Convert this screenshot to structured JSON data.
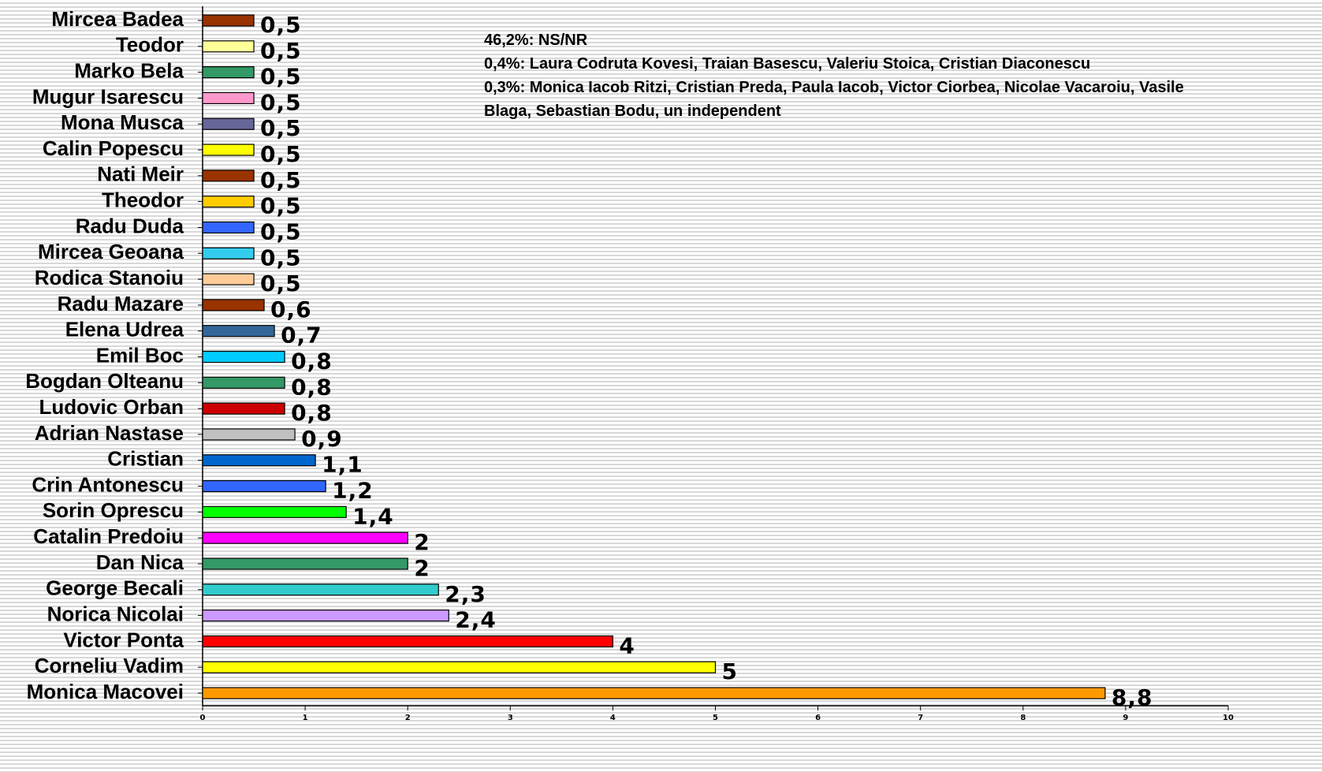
{
  "chart_data": {
    "type": "bar",
    "orientation": "horizontal",
    "categories": [
      "Mircea Badea",
      "Teodor",
      "Marko Bela",
      "Mugur Isarescu",
      "Mona Musca",
      "Calin Popescu",
      "Nati Meir",
      "Theodor",
      "Radu Duda",
      "Mircea Geoana",
      "Rodica Stanoiu",
      "Radu Mazare",
      "Elena Udrea",
      "Emil Boc",
      "Bogdan Olteanu",
      "Ludovic Orban",
      "Adrian Nastase",
      "Cristian",
      "Crin Antonescu",
      "Sorin Oprescu",
      "Catalin Predoiu",
      "Dan Nica",
      "George Becali",
      "Norica Nicolai",
      "Victor Ponta",
      "Corneliu Vadim",
      "Monica Macovei"
    ],
    "values": [
      0.5,
      0.5,
      0.5,
      0.5,
      0.5,
      0.5,
      0.5,
      0.5,
      0.5,
      0.5,
      0.5,
      0.6,
      0.7,
      0.8,
      0.8,
      0.8,
      0.9,
      1.1,
      1.2,
      1.4,
      2,
      2,
      2.3,
      2.4,
      4,
      5,
      8.8
    ],
    "value_labels": [
      "0,5",
      "0,5",
      "0,5",
      "0,5",
      "0,5",
      "0,5",
      "0,5",
      "0,5",
      "0,5",
      "0,5",
      "0,5",
      "0,6",
      "0,7",
      "0,8",
      "0,8",
      "0,8",
      "0,9",
      "1,1",
      "1,2",
      "1,4",
      "2",
      "2",
      "2,3",
      "2,4",
      "4",
      "5",
      "8,8"
    ],
    "colors": [
      "#993300",
      "#ffff99",
      "#339966",
      "#ff99cc",
      "#666699",
      "#ffff00",
      "#993300",
      "#ffcc00",
      "#3366ff",
      "#33ccee",
      "#ffcc99",
      "#993300",
      "#336699",
      "#00ccff",
      "#339966",
      "#cc0000",
      "#c0c0c0",
      "#0066cc",
      "#3366ff",
      "#00ff00",
      "#ff00ff",
      "#339966",
      "#33cccc",
      "#cc99ff",
      "#ff0000",
      "#ffff00",
      "#ff9900"
    ],
    "xlim": [
      0,
      10
    ],
    "xticks": [
      0,
      1,
      2,
      3,
      4,
      5,
      6,
      7,
      8,
      9,
      10
    ],
    "annotations": [
      "46,2%: NS/NR",
      "0,4%: Laura Codruta Kovesi, Traian Basescu, Valeriu Stoica, Cristian Diaconescu",
      "0,3%: Monica Iacob Ritzi, Cristian Preda, Paula Iacob, Victor Ciorbea, Nicolae Vacaroiu, Vasile Blaga, Sebastian Bodu, un independent"
    ]
  }
}
